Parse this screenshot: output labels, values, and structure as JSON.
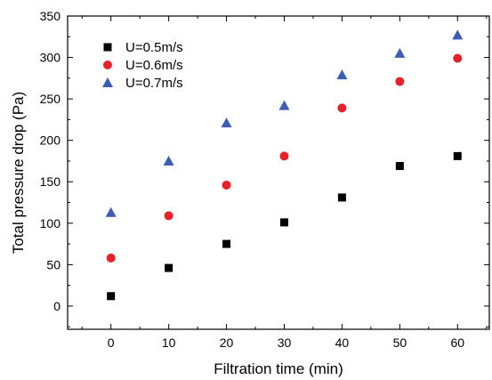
{
  "chart_data": {
    "type": "scatter",
    "xlabel": "Filtration time (min)",
    "ylabel": "Total pressure drop (Pa)",
    "xlim": [
      -7.5,
      65.5
    ],
    "ylim": [
      -28,
      350
    ],
    "x_ticks": [
      0,
      10,
      20,
      30,
      40,
      50,
      60
    ],
    "y_ticks": [
      0,
      50,
      100,
      150,
      200,
      250,
      300,
      350
    ],
    "grid": false,
    "legend_position": "top-left",
    "series": [
      {
        "name": "U=0.5m/s",
        "marker": "square",
        "color": "#000000",
        "x": [
          0,
          10,
          20,
          30,
          40,
          50,
          60
        ],
        "y": [
          12,
          46,
          75,
          101,
          131,
          169,
          181
        ]
      },
      {
        "name": "U=0.6m/s",
        "marker": "circle",
        "color": "#e8202a",
        "x": [
          0,
          10,
          20,
          30,
          40,
          50,
          60
        ],
        "y": [
          58,
          109,
          146,
          181,
          239,
          271,
          299
        ]
      },
      {
        "name": "U=0.7m/s",
        "marker": "triangle",
        "color": "#3f5cb5",
        "x": [
          0,
          10,
          20,
          30,
          40,
          50,
          60
        ],
        "y": [
          113,
          175,
          221,
          242,
          279,
          305,
          327
        ]
      }
    ]
  }
}
